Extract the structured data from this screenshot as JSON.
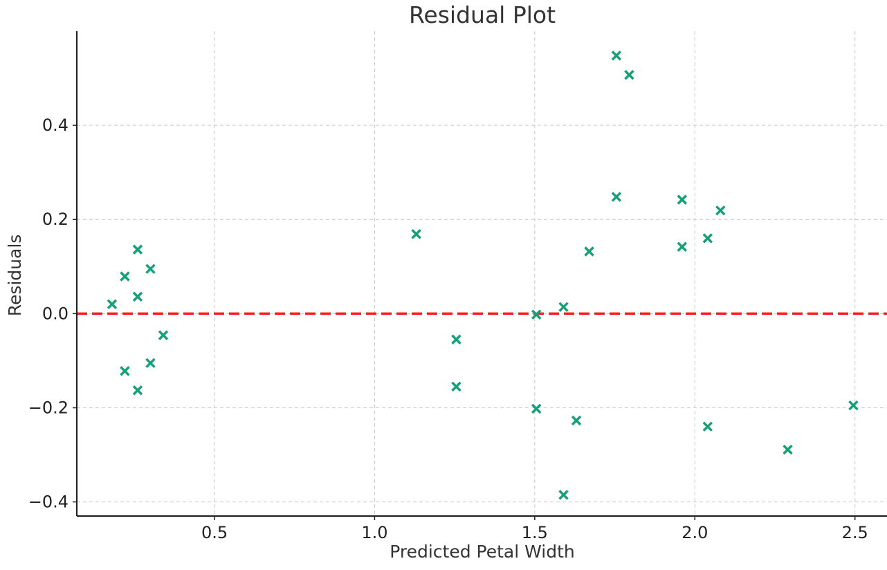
{
  "chart_data": {
    "type": "scatter",
    "title": "Residual Plot",
    "xlabel": "Predicted Petal Width",
    "ylabel": "Residuals",
    "xlim": [
      0.07,
      2.6
    ],
    "ylim": [
      -0.43,
      0.6
    ],
    "xticks": [
      0.5,
      1.0,
      1.5,
      2.0,
      2.5
    ],
    "xtick_labels": [
      "0.5",
      "1.0",
      "1.5",
      "2.0",
      "2.5"
    ],
    "yticks": [
      -0.4,
      -0.2,
      0.0,
      0.2,
      0.4
    ],
    "ytick_labels": [
      "−0.4",
      "−0.2",
      "0.0",
      "0.2",
      "0.4"
    ],
    "grid": true,
    "reference_line": {
      "y": 0.0,
      "style": "dashed",
      "color": "#ff1a1a"
    },
    "marker": "x",
    "marker_color": "#16a07a",
    "points": [
      {
        "x": 0.18,
        "y": 0.02
      },
      {
        "x": 0.22,
        "y": 0.079
      },
      {
        "x": 0.22,
        "y": -0.122
      },
      {
        "x": 0.26,
        "y": 0.136
      },
      {
        "x": 0.26,
        "y": 0.036
      },
      {
        "x": 0.26,
        "y": -0.163
      },
      {
        "x": 0.3,
        "y": 0.095
      },
      {
        "x": 0.3,
        "y": -0.105
      },
      {
        "x": 0.34,
        "y": -0.046
      },
      {
        "x": 1.13,
        "y": 0.169
      },
      {
        "x": 1.255,
        "y": -0.055
      },
      {
        "x": 1.255,
        "y": -0.155
      },
      {
        "x": 1.505,
        "y": -0.002
      },
      {
        "x": 1.505,
        "y": -0.202
      },
      {
        "x": 1.59,
        "y": 0.014
      },
      {
        "x": 1.59,
        "y": -0.385
      },
      {
        "x": 1.63,
        "y": -0.227
      },
      {
        "x": 1.67,
        "y": 0.132
      },
      {
        "x": 1.755,
        "y": 0.548
      },
      {
        "x": 1.755,
        "y": 0.248
      },
      {
        "x": 1.795,
        "y": 0.507
      },
      {
        "x": 1.96,
        "y": 0.242
      },
      {
        "x": 1.96,
        "y": 0.142
      },
      {
        "x": 2.04,
        "y": 0.16
      },
      {
        "x": 2.04,
        "y": -0.24
      },
      {
        "x": 2.08,
        "y": 0.219
      },
      {
        "x": 2.29,
        "y": -0.289
      },
      {
        "x": 2.495,
        "y": -0.195
      }
    ]
  }
}
